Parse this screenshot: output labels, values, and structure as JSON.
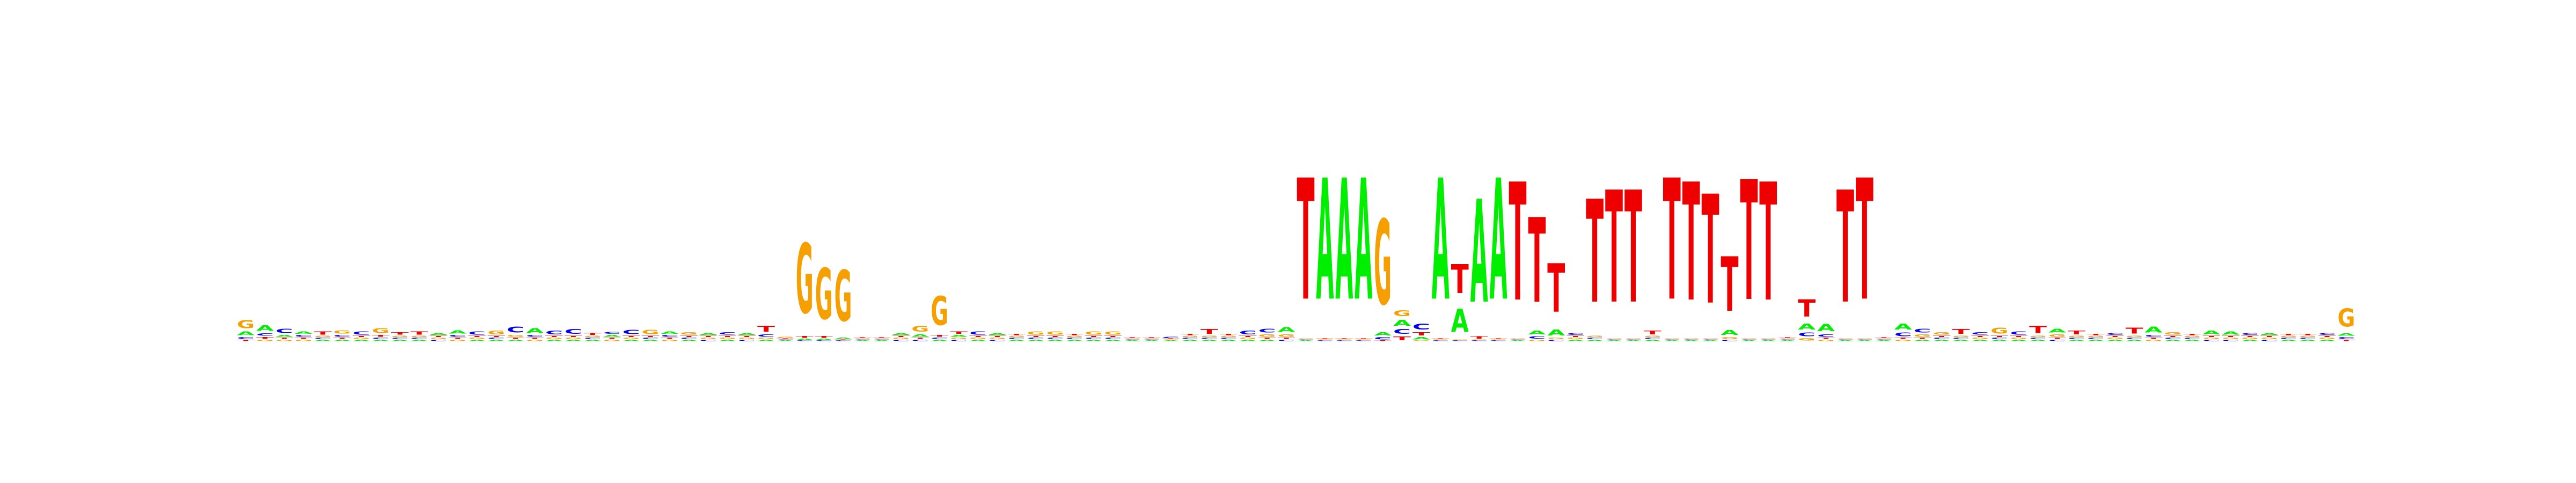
{
  "chart_data": {
    "type": "sequence-logo",
    "title": "",
    "xlabel": "",
    "ylabel": "",
    "alphabet": [
      "A",
      "C",
      "G",
      "T"
    ],
    "colors": {
      "A": "#00ee00",
      "C": "#0000ee",
      "G": "#f5a000",
      "T": "#ee0000"
    },
    "max_bits": 2.0,
    "positions": [
      {
        "A": 0.06,
        "C": 0.03,
        "G": 0.13,
        "T": 0.02
      },
      {
        "A": 0.09,
        "C": 0.04,
        "G": 0.02,
        "T": 0.03
      },
      {
        "A": 0.03,
        "C": 0.07,
        "G": 0.02,
        "T": 0.02
      },
      {
        "A": 0.04,
        "C": 0.03,
        "G": 0.02,
        "T": 0.02
      },
      {
        "A": 0.02,
        "C": 0.02,
        "G": 0.02,
        "T": 0.05
      },
      {
        "A": 0.02,
        "C": 0.03,
        "G": 0.05,
        "T": 0.02
      },
      {
        "A": 0.02,
        "C": 0.05,
        "G": 0.02,
        "T": 0.02
      },
      {
        "A": 0.02,
        "C": 0.02,
        "G": 0.08,
        "T": 0.03
      },
      {
        "A": 0.02,
        "C": 0.02,
        "G": 0.02,
        "T": 0.04
      },
      {
        "A": 0.02,
        "C": 0.02,
        "G": 0.02,
        "T": 0.05
      },
      {
        "A": 0.03,
        "C": 0.02,
        "G": 0.02,
        "T": 0.02
      },
      {
        "A": 0.05,
        "C": 0.03,
        "G": 0.02,
        "T": 0.02
      },
      {
        "A": 0.02,
        "C": 0.05,
        "G": 0.02,
        "T": 0.02
      },
      {
        "A": 0.02,
        "C": 0.02,
        "G": 0.06,
        "T": 0.02
      },
      {
        "A": 0.02,
        "C": 0.1,
        "G": 0.03,
        "T": 0.02
      },
      {
        "A": 0.08,
        "C": 0.03,
        "G": 0.02,
        "T": 0.02
      },
      {
        "A": 0.02,
        "C": 0.06,
        "G": 0.02,
        "T": 0.02
      },
      {
        "A": 0.02,
        "C": 0.08,
        "G": 0.02,
        "T": 0.02
      },
      {
        "A": 0.02,
        "C": 0.02,
        "G": 0.02,
        "T": 0.03
      },
      {
        "A": 0.03,
        "C": 0.03,
        "G": 0.02,
        "T": 0.02
      },
      {
        "A": 0.02,
        "C": 0.07,
        "G": 0.02,
        "T": 0.02
      },
      {
        "A": 0.02,
        "C": 0.02,
        "G": 0.07,
        "T": 0.02
      },
      {
        "A": 0.04,
        "C": 0.03,
        "G": 0.02,
        "T": 0.02
      },
      {
        "A": 0.02,
        "C": 0.02,
        "G": 0.04,
        "T": 0.02
      },
      {
        "A": 0.03,
        "C": 0.02,
        "G": 0.02,
        "T": 0.02
      },
      {
        "A": 0.02,
        "C": 0.04,
        "G": 0.02,
        "T": 0.02
      },
      {
        "A": 0.03,
        "C": 0.02,
        "G": 0.02,
        "T": 0.02
      },
      {
        "A": 0.02,
        "C": 0.04,
        "G": 0.02,
        "T": 0.1
      },
      {
        "A": 0.01,
        "C": 0.01,
        "G": 0.02,
        "T": 0.01
      },
      {
        "A": 0.02,
        "C": 0.01,
        "G": 1.15,
        "T": 0.03
      },
      {
        "A": 0.02,
        "C": 0.01,
        "G": 0.84,
        "T": 0.03
      },
      {
        "A": 0.02,
        "C": 0.01,
        "G": 0.84,
        "T": 0.01
      },
      {
        "A": 0.01,
        "C": 0.01,
        "G": 0.01,
        "T": 0.01
      },
      {
        "A": 0.01,
        "C": 0.01,
        "G": 0.01,
        "T": 0.01
      },
      {
        "A": 0.03,
        "C": 0.02,
        "G": 0.02,
        "T": 0.02
      },
      {
        "A": 0.04,
        "C": 0.02,
        "G": 0.1,
        "T": 0.02
      },
      {
        "A": 0.02,
        "C": 0.02,
        "G": 0.48,
        "T": 0.03
      },
      {
        "A": 0.03,
        "C": 0.02,
        "G": 0.02,
        "T": 0.04
      },
      {
        "A": 0.02,
        "C": 0.05,
        "G": 0.02,
        "T": 0.02
      },
      {
        "A": 0.03,
        "C": 0.02,
        "G": 0.02,
        "T": 0.02
      },
      {
        "A": 0.02,
        "C": 0.02,
        "G": 0.02,
        "T": 0.02
      },
      {
        "A": 0.02,
        "C": 0.02,
        "G": 0.05,
        "T": 0.02
      },
      {
        "A": 0.02,
        "C": 0.02,
        "G": 0.05,
        "T": 0.02
      },
      {
        "A": 0.02,
        "C": 0.02,
        "G": 0.02,
        "T": 0.02
      },
      {
        "A": 0.02,
        "C": 0.02,
        "G": 0.05,
        "T": 0.02
      },
      {
        "A": 0.02,
        "C": 0.02,
        "G": 0.05,
        "T": 0.02
      },
      {
        "A": 0.01,
        "C": 0.01,
        "G": 0.01,
        "T": 0.01
      },
      {
        "A": 0.01,
        "C": 0.01,
        "G": 0.01,
        "T": 0.01
      },
      {
        "A": 0.01,
        "C": 0.02,
        "G": 0.01,
        "T": 0.01
      },
      {
        "A": 0.02,
        "C": 0.02,
        "G": 0.02,
        "T": 0.02
      },
      {
        "A": 0.02,
        "C": 0.02,
        "G": 0.02,
        "T": 0.08
      },
      {
        "A": 0.02,
        "C": 0.02,
        "G": 0.02,
        "T": 0.02
      },
      {
        "A": 0.02,
        "C": 0.06,
        "G": 0.02,
        "T": 0.02
      },
      {
        "A": 0.02,
        "C": 0.06,
        "G": 0.04,
        "T": 0.02
      },
      {
        "A": 0.08,
        "C": 0.02,
        "G": 0.04,
        "T": 0.02
      },
      {
        "A": 0.01,
        "C": 0.01,
        "G": 0.01,
        "T": 2.0
      },
      {
        "A": 2.0,
        "C": 0.01,
        "G": 0.01,
        "T": 0.01
      },
      {
        "A": 2.0,
        "C": 0.01,
        "G": 0.01,
        "T": 0.01
      },
      {
        "A": 2.0,
        "C": 0.01,
        "G": 0.01,
        "T": 0.01
      },
      {
        "A": 0.05,
        "C": 0.04,
        "G": 1.4,
        "T": 0.01
      },
      {
        "A": 0.1,
        "C": 0.08,
        "G": 0.1,
        "T": 0.06
      },
      {
        "A": 0.04,
        "C": 0.1,
        "G": 0.01,
        "T": 0.05
      },
      {
        "A": 2.0,
        "C": 0.01,
        "G": 0.01,
        "T": 0.01
      },
      {
        "A": 0.38,
        "C": 0.01,
        "G": 0.01,
        "T": 0.48
      },
      {
        "A": 1.7,
        "C": 0.01,
        "G": 0.01,
        "T": 0.04
      },
      {
        "A": 2.0,
        "C": 0.01,
        "G": 0.01,
        "T": 0.01
      },
      {
        "A": 0.01,
        "C": 0.01,
        "G": 0.01,
        "T": 1.95
      },
      {
        "A": 0.06,
        "C": 0.04,
        "G": 0.02,
        "T": 1.4
      },
      {
        "A": 0.1,
        "C": 0.02,
        "G": 0.02,
        "T": 0.8
      },
      {
        "A": 0.02,
        "C": 0.03,
        "G": 0.02,
        "T": 0.02
      },
      {
        "A": 0.02,
        "C": 0.02,
        "G": 0.02,
        "T": 1.7
      },
      {
        "A": 0.01,
        "C": 0.01,
        "G": 0.01,
        "T": 1.85
      },
      {
        "A": 0.01,
        "C": 0.01,
        "G": 0.01,
        "T": 1.85
      },
      {
        "A": 0.02,
        "C": 0.02,
        "G": 0.02,
        "T": 0.06
      },
      {
        "A": 0.01,
        "C": 0.01,
        "G": 0.01,
        "T": 2.0
      },
      {
        "A": 0.01,
        "C": 0.01,
        "G": 0.01,
        "T": 1.95
      },
      {
        "A": 0.01,
        "C": 0.01,
        "G": 0.01,
        "T": 1.8
      },
      {
        "A": 0.08,
        "C": 0.02,
        "G": 0.03,
        "T": 0.9
      },
      {
        "A": 0.01,
        "C": 0.01,
        "G": 0.01,
        "T": 1.98
      },
      {
        "A": 0.01,
        "C": 0.01,
        "G": 0.01,
        "T": 1.95
      },
      {
        "A": 0.01,
        "C": 0.01,
        "G": 0.01,
        "T": 0.01
      },
      {
        "A": 0.1,
        "C": 0.06,
        "G": 0.04,
        "T": 0.28
      },
      {
        "A": 0.12,
        "C": 0.04,
        "G": 0.02,
        "T": 0.02
      },
      {
        "A": 0.01,
        "C": 0.01,
        "G": 0.01,
        "T": 1.85
      },
      {
        "A": 0.01,
        "C": 0.01,
        "G": 0.01,
        "T": 2.0
      },
      {
        "A": 0.01,
        "C": 0.01,
        "G": 0.01,
        "T": 0.01
      },
      {
        "A": 0.1,
        "C": 0.06,
        "G": 0.02,
        "T": 0.02
      },
      {
        "A": 0.02,
        "C": 0.06,
        "G": 0.04,
        "T": 0.02
      },
      {
        "A": 0.02,
        "C": 0.02,
        "G": 0.04,
        "T": 0.02
      },
      {
        "A": 0.02,
        "C": 0.02,
        "G": 0.02,
        "T": 0.08
      },
      {
        "A": 0.02,
        "C": 0.04,
        "G": 0.02,
        "T": 0.02
      },
      {
        "A": 0.02,
        "C": 0.02,
        "G": 0.1,
        "T": 0.02
      },
      {
        "A": 0.02,
        "C": 0.05,
        "G": 0.02,
        "T": 0.02
      },
      {
        "A": 0.02,
        "C": 0.02,
        "G": 0.02,
        "T": 0.12
      },
      {
        "A": 0.06,
        "C": 0.02,
        "G": 0.04,
        "T": 0.02
      },
      {
        "A": 0.02,
        "C": 0.02,
        "G": 0.02,
        "T": 0.06
      },
      {
        "A": 0.02,
        "C": 0.02,
        "G": 0.02,
        "T": 0.02
      },
      {
        "A": 0.02,
        "C": 0.03,
        "G": 0.02,
        "T": 0.02
      },
      {
        "A": 0.02,
        "C": 0.02,
        "G": 0.02,
        "T": 0.1
      },
      {
        "A": 0.1,
        "C": 0.03,
        "G": 0.02,
        "T": 0.02
      },
      {
        "A": 0.02,
        "C": 0.02,
        "G": 0.04,
        "T": 0.02
      },
      {
        "A": 0.02,
        "C": 0.02,
        "G": 0.02,
        "T": 0.02
      },
      {
        "A": 0.06,
        "C": 0.02,
        "G": 0.02,
        "T": 0.02
      },
      {
        "A": 0.05,
        "C": 0.02,
        "G": 0.02,
        "T": 0.02
      },
      {
        "A": 0.02,
        "C": 0.03,
        "G": 0.02,
        "T": 0.02
      },
      {
        "A": 0.03,
        "C": 0.02,
        "G": 0.02,
        "T": 0.02
      },
      {
        "A": 0.02,
        "C": 0.02,
        "G": 0.02,
        "T": 0.02
      },
      {
        "A": 0.02,
        "C": 0.02,
        "G": 0.02,
        "T": 0.02
      },
      {
        "A": 0.02,
        "C": 0.03,
        "G": 0.02,
        "T": 0.02
      },
      {
        "A": 0.04,
        "C": 0.03,
        "G": 0.3,
        "T": 0.02
      }
    ]
  }
}
